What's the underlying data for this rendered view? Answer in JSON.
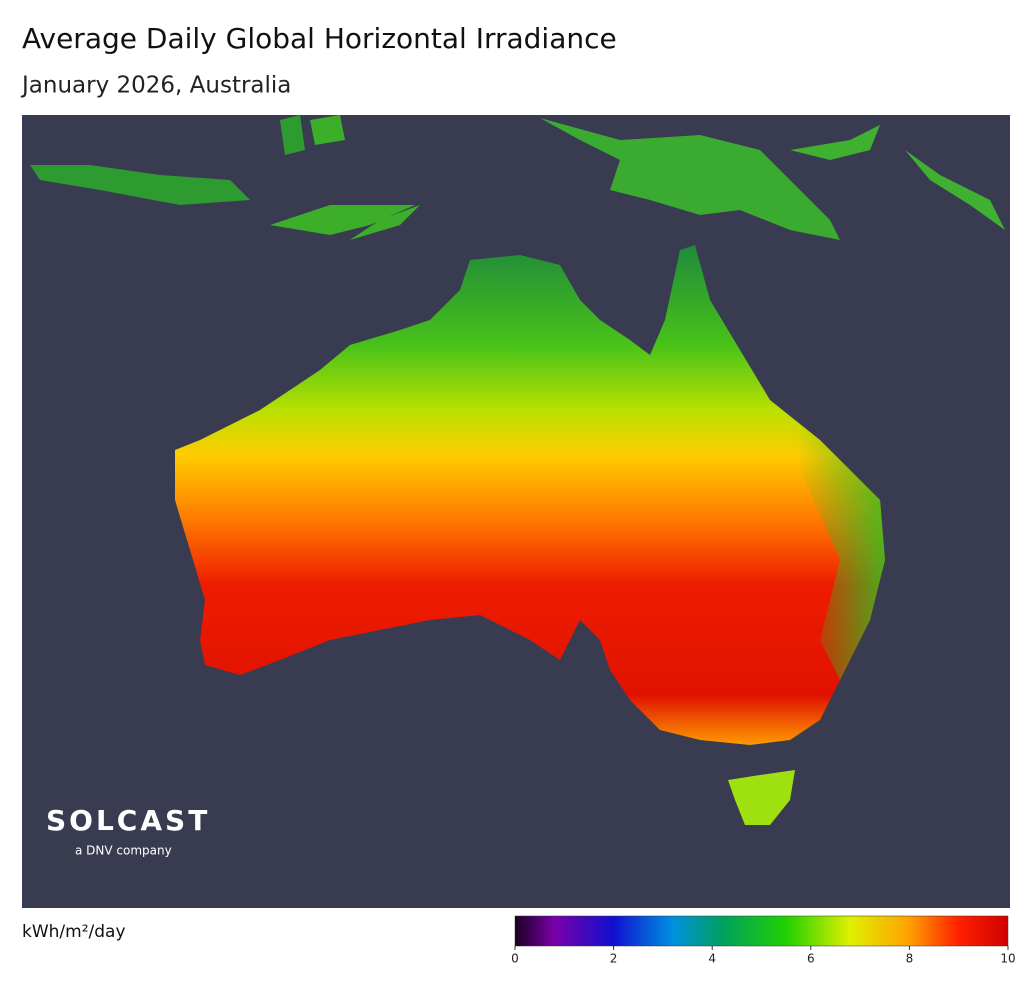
{
  "header": {
    "title": "Average Daily Global Horizontal Irradiance",
    "subtitle": "January 2026, Australia"
  },
  "map": {
    "logo": {
      "name": "SOLCAST",
      "tagline": "a DNV company"
    }
  },
  "colorbar": {
    "label": "kWh/m²/day",
    "range": [
      0,
      10
    ],
    "ticks": [
      0,
      2,
      4,
      6,
      8,
      10
    ]
  }
}
